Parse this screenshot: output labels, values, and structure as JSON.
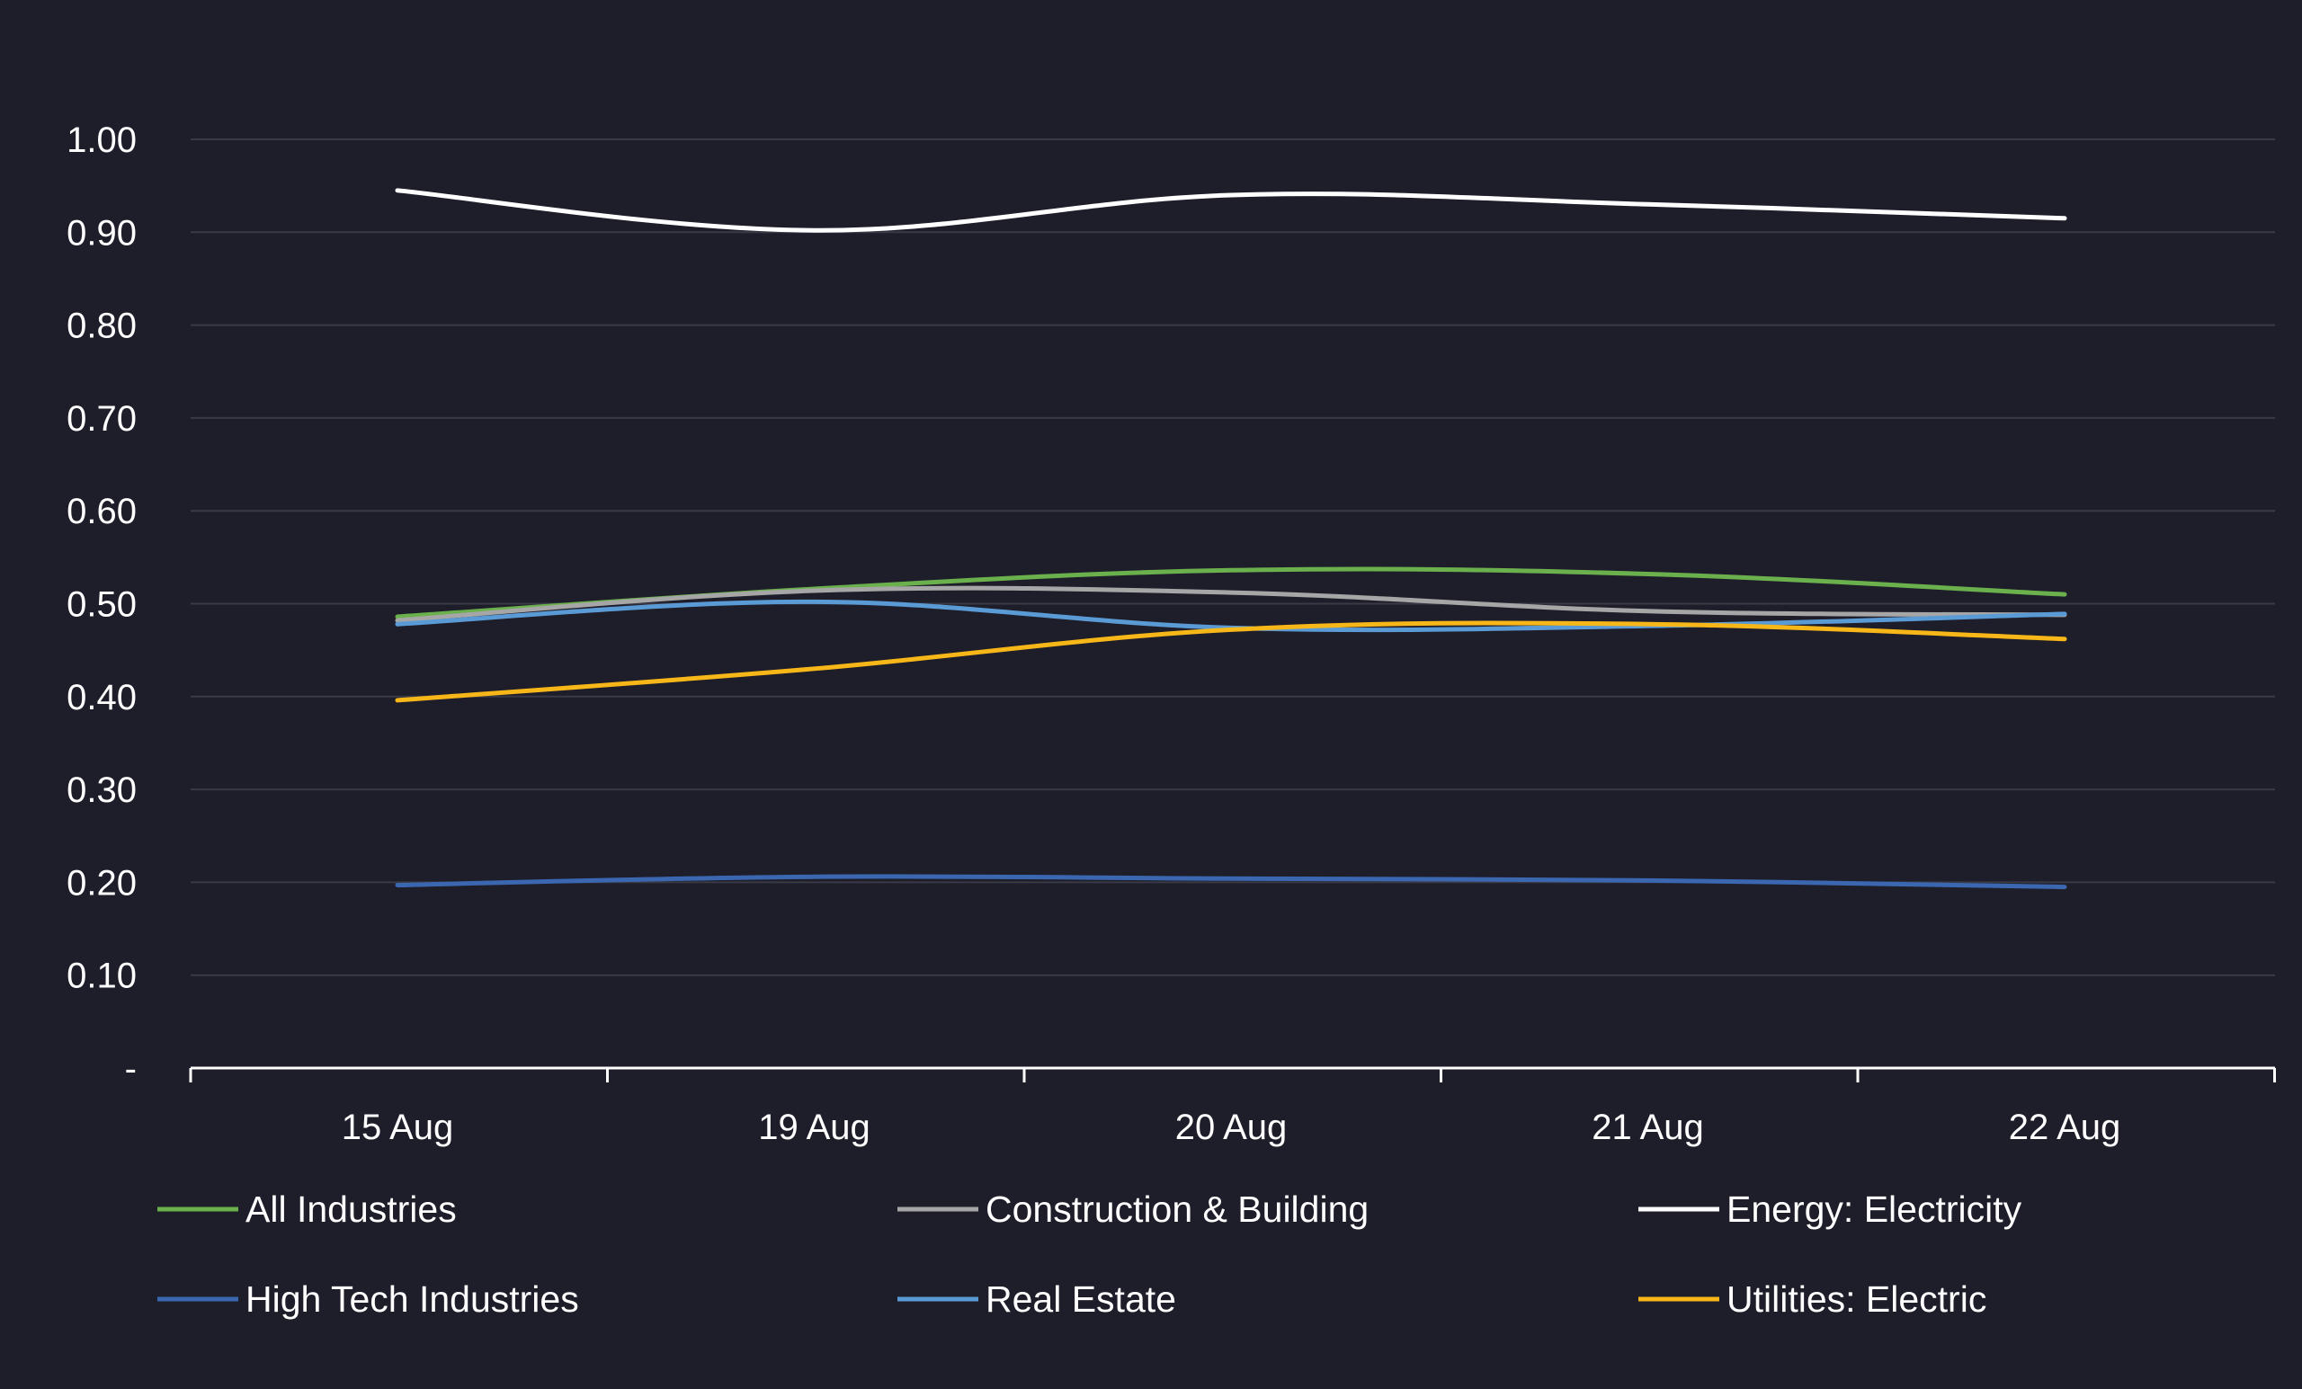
{
  "chart_data": {
    "type": "line",
    "title": "",
    "xlabel": "",
    "ylabel": "",
    "categories": [
      "15 Aug",
      "19 Aug",
      "20 Aug",
      "21 Aug",
      "22 Aug"
    ],
    "ylim": [
      0,
      1.0
    ],
    "y_ticks": [
      "-",
      "0.10",
      "0.20",
      "0.30",
      "0.40",
      "0.50",
      "0.60",
      "0.70",
      "0.80",
      "0.90",
      "1.00"
    ],
    "grid": true,
    "legend_position": "bottom",
    "series": [
      {
        "name": "All Industries",
        "color": "#6ab04c",
        "values": [
          0.486,
          0.516,
          0.536,
          0.532,
          0.51
        ]
      },
      {
        "name": "Construction & Building",
        "color": "#a6a6a6",
        "values": [
          0.482,
          0.514,
          0.512,
          0.492,
          0.488
        ]
      },
      {
        "name": "Energy: Electricity",
        "color": "#ffffff",
        "values": [
          0.945,
          0.902,
          0.94,
          0.93,
          0.915
        ]
      },
      {
        "name": "High Tech Industries",
        "color": "#3a67b0",
        "values": [
          0.197,
          0.206,
          0.204,
          0.202,
          0.195
        ]
      },
      {
        "name": "Real Estate",
        "color": "#5b9bd5",
        "values": [
          0.478,
          0.502,
          0.474,
          0.476,
          0.489
        ]
      },
      {
        "name": "Utilities: Electric",
        "color": "#f7b718",
        "values": [
          0.396,
          0.43,
          0.472,
          0.478,
          0.462
        ]
      }
    ]
  }
}
